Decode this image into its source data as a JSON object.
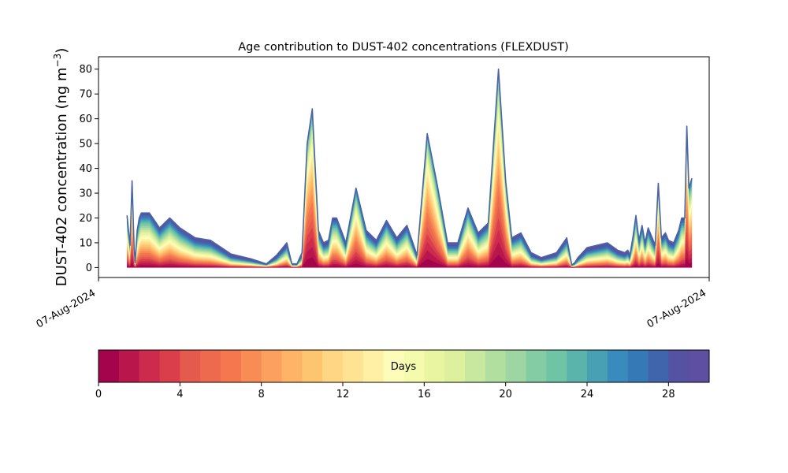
{
  "chart_data": {
    "type": "area",
    "title": "Age contribution to DUST-402 concentrations (FLEXDUST)",
    "ylabel_main": "DUST-402 concentration (ng m",
    "ylabel_sup": "−3",
    "ylabel_close": ")",
    "xlabel": "",
    "x_tick_labels": [
      "07-Aug-2024",
      "07-Aug-2024"
    ],
    "ylim": [
      -4,
      85
    ],
    "y_ticks": [
      0,
      10,
      20,
      30,
      40,
      50,
      60,
      70,
      80
    ],
    "x_range": [
      0,
      60
    ],
    "x": [
      2.8,
      3.1,
      3.3,
      3.5,
      3.6,
      3.8,
      4.0,
      4.2,
      4.5,
      5.0,
      6.0,
      7.0,
      8.0,
      9.5,
      11.0,
      13.0,
      15.0,
      16.5,
      17.5,
      18.5,
      19.0,
      19.5,
      20.0,
      20.5,
      21.0,
      21.6,
      22.1,
      22.6,
      23.0,
      23.4,
      24.3,
      25.3,
      26.3,
      27.3,
      28.3,
      29.3,
      30.3,
      31.3,
      32.3,
      33.3,
      34.3,
      35.3,
      36.3,
      37.3,
      38.3,
      39.3,
      40.0,
      40.6,
      41.5,
      42.5,
      43.5,
      45.0,
      46.0,
      46.5,
      46.8,
      47.1,
      48.0,
      50.0,
      51.0,
      51.7,
      52.0,
      52.2,
      52.5,
      52.8,
      53.1,
      53.4,
      53.7,
      54.0,
      54.3,
      54.7,
      55.0,
      55.3,
      55.7,
      56.0,
      56.5,
      57.0,
      57.3,
      57.6,
      57.8,
      58.0,
      58.3
    ],
    "total": [
      21,
      9,
      35,
      8,
      2,
      15,
      20,
      22,
      22,
      22,
      16,
      20,
      16,
      12,
      11,
      5.5,
      3.5,
      1.5,
      5,
      10,
      1.5,
      1.5,
      6,
      50,
      64,
      15,
      10,
      11,
      20,
      20,
      10,
      32,
      15,
      11,
      19,
      12,
      17,
      5,
      54,
      33,
      10,
      10,
      24,
      14,
      18,
      80,
      35,
      12,
      14,
      6,
      4,
      6,
      12,
      1,
      2,
      4,
      8,
      10,
      7,
      6,
      7,
      5,
      12,
      21,
      11,
      17,
      10,
      16,
      13,
      9,
      34,
      12,
      14,
      11,
      10,
      15,
      20,
      20,
      57,
      32,
      36
    ],
    "colorbar": {
      "label": "Days",
      "range": [
        0,
        30
      ],
      "ticks": [
        0,
        4,
        8,
        12,
        16,
        20,
        24,
        28
      ],
      "colors": [
        "#a3044b",
        "#b9174c",
        "#cc2b4d",
        "#da3e4b",
        "#e45a4c",
        "#ed6a4f",
        "#f4774d",
        "#f88c55",
        "#fba05f",
        "#fdb466",
        "#fec571",
        "#fed684",
        "#fee393",
        "#fff0a6",
        "#fdfcb9",
        "#f5fbad",
        "#e9f5a1",
        "#dcf09d",
        "#c7e89e",
        "#b1df9f",
        "#9dd6a2",
        "#84cca4",
        "#70c4a6",
        "#5ab4ab",
        "#48a1b3",
        "#3a8bbd",
        "#3579b7",
        "#4165ac",
        "#5551a3",
        "#5e4fa2"
      ]
    }
  }
}
